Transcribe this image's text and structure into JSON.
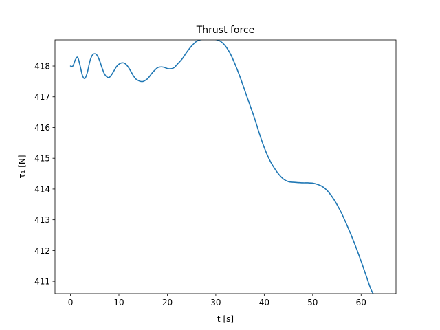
{
  "chart_data": {
    "type": "line",
    "title": "Thrust force",
    "xlabel": "t [s]",
    "ylabel": "τ₁ [N]",
    "xlim": [
      -3.2,
      67.2
    ],
    "ylim": [
      410.6,
      418.85
    ],
    "xticks": [
      0,
      10,
      20,
      30,
      40,
      50,
      60
    ],
    "yticks": [
      411,
      412,
      413,
      414,
      415,
      416,
      417,
      418
    ],
    "grid": false,
    "series": [
      {
        "color": "#1f77b4",
        "x": [
          0,
          0.5,
          1,
          1.5,
          2,
          2.5,
          3,
          3.5,
          4,
          4.5,
          5,
          5.5,
          6,
          6.5,
          7,
          7.5,
          8,
          8.5,
          9,
          9.5,
          10,
          10.5,
          11,
          11.5,
          12,
          12.5,
          13,
          13.5,
          14,
          14.5,
          15,
          15.5,
          16,
          16.5,
          17,
          17.5,
          18,
          18.5,
          19,
          19.5,
          20,
          20.5,
          21,
          21.5,
          22,
          23,
          24,
          25,
          26,
          27,
          28,
          29,
          30,
          31,
          32,
          33,
          34,
          35,
          36,
          37,
          38,
          39,
          40,
          41,
          42,
          43,
          44,
          45,
          46,
          47,
          48,
          49,
          50,
          51,
          52,
          53,
          54,
          55,
          56,
          57,
          58,
          59,
          60,
          61,
          62,
          63,
          64
        ],
        "y": [
          418.0,
          418.0,
          418.2,
          418.28,
          418.0,
          417.68,
          417.6,
          417.8,
          418.15,
          418.35,
          418.4,
          418.35,
          418.18,
          417.95,
          417.75,
          417.65,
          417.63,
          417.72,
          417.85,
          417.98,
          418.06,
          418.1,
          418.1,
          418.05,
          417.95,
          417.82,
          417.68,
          417.58,
          417.53,
          417.5,
          417.5,
          417.54,
          417.6,
          417.7,
          417.8,
          417.88,
          417.95,
          417.97,
          417.97,
          417.95,
          417.92,
          417.91,
          417.92,
          417.96,
          418.05,
          418.22,
          418.45,
          418.65,
          418.8,
          418.86,
          418.88,
          418.88,
          418.86,
          418.8,
          418.65,
          418.4,
          418.05,
          417.65,
          417.2,
          416.75,
          416.3,
          415.8,
          415.35,
          414.98,
          414.7,
          414.48,
          414.32,
          414.24,
          414.22,
          414.21,
          414.2,
          414.2,
          414.19,
          414.15,
          414.08,
          413.95,
          413.75,
          413.5,
          413.2,
          412.85,
          412.48,
          412.08,
          411.65,
          411.2,
          410.75,
          410.45,
          410.1
        ]
      }
    ]
  }
}
